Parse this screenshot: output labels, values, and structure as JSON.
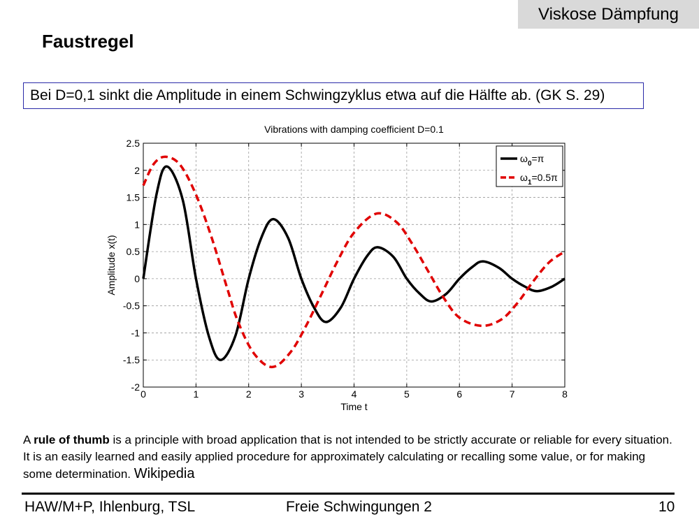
{
  "slide": {
    "topic": "Viskose Dämpfung",
    "heading": "Faustregel",
    "rule_box": "Bei D=0,1 sinkt die Amplitude in einem Schwingzyklus etwa auf die Hälfte ab. (GK S. 29)",
    "intro": {
      "prefix": "A ",
      "bold": "rule of thumb",
      "rest": " is a principle with broad application that is not intended to be strictly accurate or reliable for every situation. It is an easily learned and easily applied procedure for approximately calculating or recalling some value, or for making some determination.",
      "source": "Wikipedia"
    },
    "footer": {
      "left": "HAW/M+P, Ihlenburg, TSL",
      "center": "Freie Schwingungen 2",
      "page": "10"
    }
  },
  "chart_data": {
    "type": "line",
    "title": "Vibrations with damping coefficient D=0.1",
    "xlabel": "Time t",
    "ylabel": "Amplitude x(t)",
    "xlim": [
      0,
      8
    ],
    "ylim": [
      -2,
      2.5
    ],
    "xticks": [
      0,
      1,
      2,
      3,
      4,
      5,
      6,
      7,
      8
    ],
    "yticks": [
      2.5,
      2,
      1.5,
      1,
      0.5,
      0,
      -0.5,
      -1,
      -1.5,
      -2
    ],
    "ytick_labels": [
      "2.5",
      "2",
      "1.5",
      "1",
      "0.5",
      "0",
      "-0.5",
      "-1",
      "-1.5",
      "-2"
    ],
    "grid": true,
    "legend_position": "top-right",
    "series": [
      {
        "legend_main": "ω",
        "legend_sub": "0",
        "legend_suffix": "=π",
        "color": "#000000",
        "style": "solid",
        "x": [
          0,
          0.25,
          0.45,
          0.75,
          1.0,
          1.25,
          1.47,
          1.75,
          2.0,
          2.25,
          2.47,
          2.75,
          3.0,
          3.25,
          3.47,
          3.75,
          4.0,
          4.25,
          4.45,
          4.75,
          5.0,
          5.25,
          5.47,
          5.75,
          6.0,
          6.25,
          6.45,
          6.75,
          7.0,
          7.25,
          7.47,
          7.75,
          8.0
        ],
        "y": [
          0,
          1.55,
          2.07,
          1.45,
          0,
          -1.08,
          -1.5,
          -1.05,
          0,
          0.78,
          1.1,
          0.75,
          0,
          -0.55,
          -0.8,
          -0.53,
          0,
          0.42,
          0.58,
          0.4,
          0,
          -0.28,
          -0.42,
          -0.28,
          0,
          0.22,
          0.32,
          0.2,
          0,
          -0.15,
          -0.23,
          -0.15,
          0
        ]
      },
      {
        "legend_main": "ω",
        "legend_sub": "1",
        "legend_suffix": "=0.5π",
        "color": "#e00000",
        "style": "dashed",
        "x": [
          0,
          0.2,
          0.42,
          0.7,
          1.0,
          1.3,
          1.6,
          1.8,
          2.1,
          2.45,
          2.8,
          3.1,
          3.4,
          3.7,
          4.0,
          4.42,
          4.8,
          5.1,
          5.4,
          5.7,
          6.0,
          6.42,
          6.8,
          7.1,
          7.4,
          7.7,
          8.0
        ],
        "y": [
          1.72,
          2.12,
          2.25,
          2.1,
          1.55,
          0.75,
          -0.2,
          -0.8,
          -1.38,
          -1.63,
          -1.35,
          -0.85,
          -0.25,
          0.35,
          0.85,
          1.2,
          1.05,
          0.65,
          0.15,
          -0.35,
          -0.72,
          -0.87,
          -0.75,
          -0.45,
          -0.05,
          0.3,
          0.5
        ]
      }
    ]
  }
}
